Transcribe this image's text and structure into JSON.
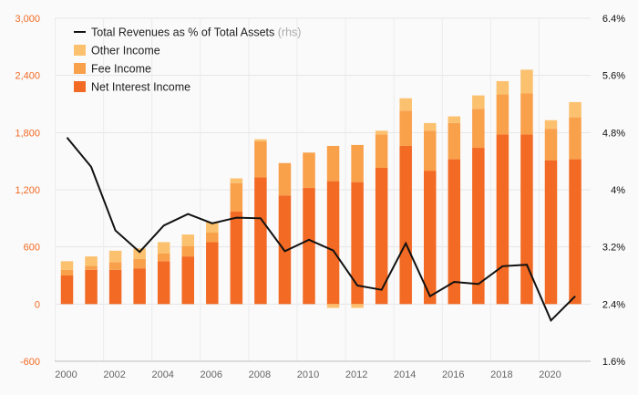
{
  "chart_data": {
    "type": "bar",
    "x": [
      2000,
      2001,
      2002,
      2003,
      2004,
      2005,
      2006,
      2007,
      2008,
      2009,
      2010,
      2011,
      2012,
      2013,
      2014,
      2015,
      2016,
      2017,
      2018,
      2019,
      2020,
      2021
    ],
    "x_tick_labels": [
      "2000",
      "2002",
      "2004",
      "2006",
      "2008",
      "2010",
      "2012",
      "2014",
      "2016",
      "2018",
      "2020"
    ],
    "stacked": true,
    "series": [
      {
        "name": "Net Interest Income",
        "color": "#f26a24",
        "values": [
          300,
          360,
          360,
          375,
          450,
          500,
          650,
          970,
          1330,
          1140,
          1220,
          1290,
          1280,
          1430,
          1660,
          1400,
          1520,
          1640,
          1780,
          1780,
          1510,
          1520
        ]
      },
      {
        "name": "Fee Income",
        "color": "#f9a04b",
        "values": [
          60,
          40,
          80,
          100,
          80,
          110,
          100,
          300,
          380,
          340,
          370,
          370,
          390,
          350,
          370,
          420,
          380,
          410,
          420,
          430,
          330,
          440
        ]
      },
      {
        "name": "Other Income",
        "color": "#fbc16f",
        "values": [
          90,
          100,
          120,
          110,
          120,
          120,
          110,
          50,
          20,
          0,
          0,
          -40,
          -40,
          40,
          130,
          80,
          70,
          140,
          140,
          250,
          90,
          160
        ]
      }
    ],
    "line_series": {
      "name": "Total Revenues as % of Total Assets",
      "axis": "right",
      "color": "#111111",
      "values": [
        4.73,
        4.32,
        3.43,
        3.13,
        3.5,
        3.66,
        3.53,
        3.61,
        3.6,
        3.14,
        3.3,
        3.15,
        2.66,
        2.6,
        3.25,
        2.51,
        2.71,
        2.68,
        2.93,
        2.95,
        2.17,
        2.51
      ]
    },
    "legend": [
      {
        "label": "Total Revenues as % of Total Assets",
        "note": "(rhs)",
        "kind": "line",
        "color": "#111111"
      },
      {
        "label": "Other Income",
        "kind": "box",
        "color": "#fbc16f"
      },
      {
        "label": "Fee Income",
        "kind": "box",
        "color": "#f9a04b"
      },
      {
        "label": "Net Interest Income",
        "kind": "box",
        "color": "#f26a24"
      }
    ],
    "legend_position": "top-left",
    "y_left": {
      "ticks": [
        "3,000",
        "2,400",
        "1,800",
        "1,200",
        "600",
        "0",
        "-600"
      ],
      "tick_values": [
        3000,
        2400,
        1800,
        1200,
        600,
        0,
        -600
      ],
      "ylim": [
        -600,
        3000
      ],
      "color": "#f26a24"
    },
    "y_right": {
      "ticks": [
        "6.4%",
        "5.6%",
        "4.8%",
        "4%",
        "3.2%",
        "2.4%",
        "1.6%"
      ],
      "tick_values": [
        6.4,
        5.6,
        4.8,
        4.0,
        3.2,
        2.4,
        1.6
      ],
      "ylim": [
        1.6,
        6.4
      ],
      "color": "#111111"
    },
    "grid": true,
    "xlabel": "",
    "ylabel": "",
    "title": ""
  }
}
